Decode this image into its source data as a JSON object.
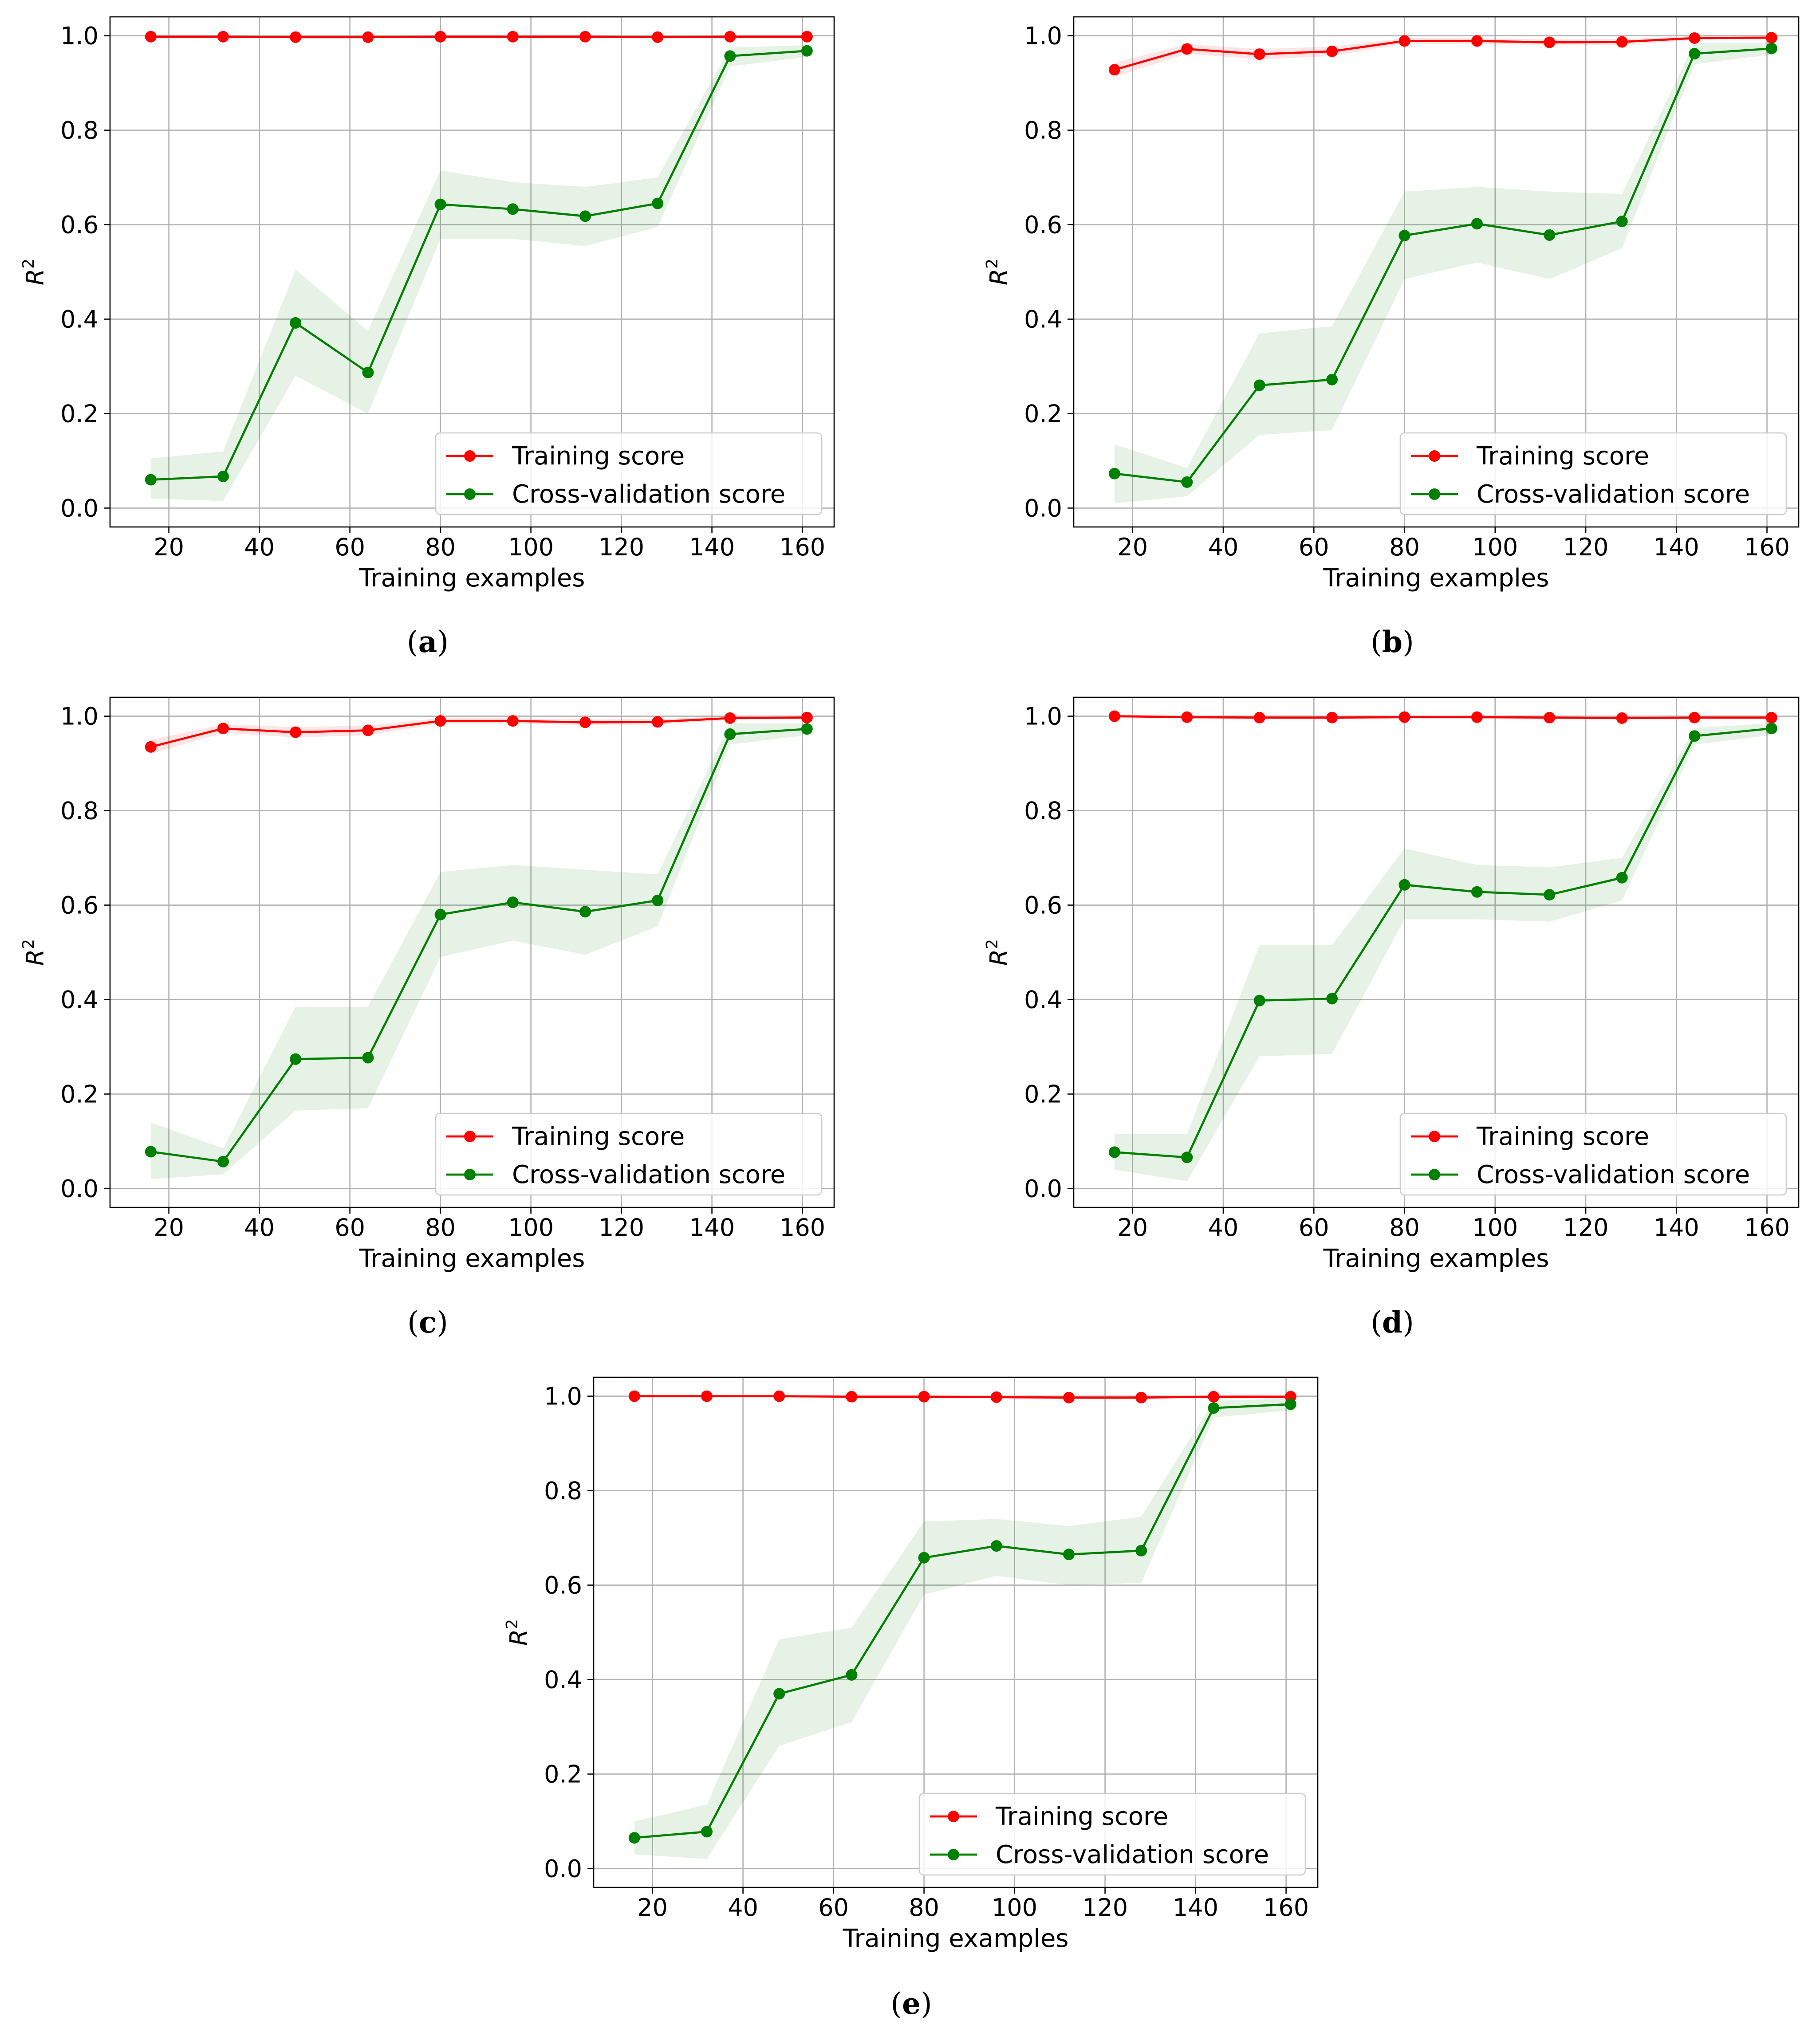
{
  "figure": {
    "xlabel": "Training examples",
    "ylabel_base": "R",
    "ylabel_sup": "2",
    "legend": {
      "training": "Training score",
      "cv": "Cross-validation score",
      "position": "lower-right"
    }
  },
  "colors": {
    "training": "#ff0000",
    "cv": "#008000",
    "training_band": "#ff0000",
    "cv_band": "#008000",
    "grid": "#b0b0b0",
    "axis": "#000000"
  },
  "chart_data": [
    {
      "type": "line",
      "panel": "a",
      "caption": "a",
      "x": [
        16,
        32,
        48,
        64,
        80,
        96,
        112,
        128,
        144,
        161
      ],
      "xlim": [
        7,
        167
      ],
      "xticks": [
        20,
        40,
        60,
        80,
        100,
        120,
        140,
        160
      ],
      "ylim": [
        -0.04,
        1.04
      ],
      "yticks": [
        "0.0",
        "0.2",
        "0.4",
        "0.6",
        "0.8",
        "1.0"
      ],
      "grid": true,
      "series": [
        {
          "name": "Training score",
          "values": [
            0.998,
            0.998,
            0.997,
            0.997,
            0.998,
            0.998,
            0.998,
            0.997,
            0.998,
            0.998
          ],
          "lower": [
            0.995,
            0.995,
            0.994,
            0.994,
            0.995,
            0.995,
            0.995,
            0.994,
            0.995,
            0.995
          ],
          "upper": [
            1.0,
            1.0,
            1.0,
            1.0,
            1.0,
            1.0,
            1.0,
            1.0,
            1.0,
            1.0
          ]
        },
        {
          "name": "Cross-validation score",
          "values": [
            0.06,
            0.067,
            0.392,
            0.287,
            0.643,
            0.633,
            0.618,
            0.645,
            0.957,
            0.968
          ],
          "lower": [
            0.02,
            0.015,
            0.28,
            0.2,
            0.57,
            0.57,
            0.555,
            0.595,
            0.935,
            0.955
          ],
          "upper": [
            0.105,
            0.12,
            0.505,
            0.375,
            0.715,
            0.69,
            0.68,
            0.7,
            0.975,
            0.98
          ]
        }
      ]
    },
    {
      "type": "line",
      "panel": "b",
      "caption": "b",
      "x": [
        16,
        32,
        48,
        64,
        80,
        96,
        112,
        128,
        144,
        161
      ],
      "xlim": [
        7,
        167
      ],
      "xticks": [
        20,
        40,
        60,
        80,
        100,
        120,
        140,
        160
      ],
      "ylim": [
        -0.04,
        1.04
      ],
      "yticks": [
        "0.0",
        "0.2",
        "0.4",
        "0.6",
        "0.8",
        "1.0"
      ],
      "grid": true,
      "series": [
        {
          "name": "Training score",
          "values": [
            0.928,
            0.972,
            0.961,
            0.967,
            0.989,
            0.989,
            0.986,
            0.987,
            0.995,
            0.996
          ],
          "lower": [
            0.913,
            0.962,
            0.95,
            0.957,
            0.983,
            0.983,
            0.98,
            0.981,
            0.991,
            0.993
          ],
          "upper": [
            0.943,
            0.982,
            0.972,
            0.977,
            0.995,
            0.995,
            0.992,
            0.993,
            0.999,
            0.999
          ]
        },
        {
          "name": "Cross-validation score",
          "values": [
            0.073,
            0.055,
            0.26,
            0.272,
            0.577,
            0.602,
            0.578,
            0.607,
            0.962,
            0.973
          ],
          "lower": [
            0.01,
            0.025,
            0.155,
            0.165,
            0.485,
            0.52,
            0.485,
            0.55,
            0.94,
            0.96
          ],
          "upper": [
            0.135,
            0.085,
            0.37,
            0.385,
            0.67,
            0.68,
            0.67,
            0.665,
            0.985,
            0.985
          ]
        }
      ]
    },
    {
      "type": "line",
      "panel": "c",
      "caption": "c",
      "x": [
        16,
        32,
        48,
        64,
        80,
        96,
        112,
        128,
        144,
        161
      ],
      "xlim": [
        7,
        167
      ],
      "xticks": [
        20,
        40,
        60,
        80,
        100,
        120,
        140,
        160
      ],
      "ylim": [
        -0.04,
        1.04
      ],
      "yticks": [
        "0.0",
        "0.2",
        "0.4",
        "0.6",
        "0.8",
        "1.0"
      ],
      "grid": true,
      "series": [
        {
          "name": "Training score",
          "values": [
            0.935,
            0.974,
            0.966,
            0.97,
            0.99,
            0.99,
            0.987,
            0.988,
            0.996,
            0.997
          ],
          "lower": [
            0.92,
            0.965,
            0.955,
            0.96,
            0.984,
            0.984,
            0.981,
            0.982,
            0.992,
            0.994
          ],
          "upper": [
            0.95,
            0.983,
            0.977,
            0.98,
            0.996,
            0.996,
            0.993,
            0.994,
            1.0,
            1.0
          ]
        },
        {
          "name": "Cross-validation score",
          "values": [
            0.078,
            0.057,
            0.274,
            0.277,
            0.58,
            0.606,
            0.586,
            0.61,
            0.962,
            0.973
          ],
          "lower": [
            0.02,
            0.03,
            0.165,
            0.17,
            0.49,
            0.525,
            0.495,
            0.555,
            0.94,
            0.96
          ],
          "upper": [
            0.14,
            0.085,
            0.385,
            0.385,
            0.67,
            0.685,
            0.675,
            0.665,
            0.985,
            0.985
          ]
        }
      ]
    },
    {
      "type": "line",
      "panel": "d",
      "caption": "d",
      "x": [
        16,
        32,
        48,
        64,
        80,
        96,
        112,
        128,
        144,
        161
      ],
      "xlim": [
        7,
        167
      ],
      "xticks": [
        20,
        40,
        60,
        80,
        100,
        120,
        140,
        160
      ],
      "ylim": [
        -0.04,
        1.04
      ],
      "yticks": [
        "0.0",
        "0.2",
        "0.4",
        "0.6",
        "0.8",
        "1.0"
      ],
      "grid": true,
      "series": [
        {
          "name": "Training score",
          "values": [
            1.0,
            0.998,
            0.997,
            0.997,
            0.998,
            0.998,
            0.997,
            0.996,
            0.997,
            0.997
          ],
          "lower": [
            0.997,
            0.995,
            0.994,
            0.994,
            0.995,
            0.995,
            0.994,
            0.993,
            0.994,
            0.994
          ],
          "upper": [
            1.0,
            1.0,
            1.0,
            1.0,
            1.0,
            1.0,
            1.0,
            0.999,
            1.0,
            1.0
          ]
        },
        {
          "name": "Cross-validation score",
          "values": [
            0.077,
            0.066,
            0.398,
            0.402,
            0.643,
            0.628,
            0.622,
            0.658,
            0.958,
            0.974
          ],
          "lower": [
            0.04,
            0.015,
            0.28,
            0.285,
            0.57,
            0.57,
            0.565,
            0.61,
            0.94,
            0.96
          ],
          "upper": [
            0.115,
            0.115,
            0.515,
            0.515,
            0.72,
            0.685,
            0.68,
            0.7,
            0.975,
            0.985
          ]
        }
      ]
    },
    {
      "type": "line",
      "panel": "e",
      "caption": "e",
      "x": [
        16,
        32,
        48,
        64,
        80,
        96,
        112,
        128,
        144,
        161
      ],
      "xlim": [
        7,
        167
      ],
      "xticks": [
        20,
        40,
        60,
        80,
        100,
        120,
        140,
        160
      ],
      "ylim": [
        -0.04,
        1.04
      ],
      "yticks": [
        "0.0",
        "0.2",
        "0.4",
        "0.6",
        "0.8",
        "1.0"
      ],
      "grid": true,
      "series": [
        {
          "name": "Training score",
          "values": [
            1.0,
            1.0,
            1.0,
            0.999,
            0.999,
            0.998,
            0.997,
            0.997,
            0.999,
            0.999
          ],
          "lower": [
            0.997,
            0.997,
            0.997,
            0.996,
            0.996,
            0.995,
            0.994,
            0.994,
            0.996,
            0.996
          ],
          "upper": [
            1.0,
            1.0,
            1.0,
            1.0,
            1.0,
            1.0,
            1.0,
            1.0,
            1.0,
            1.0
          ]
        },
        {
          "name": "Cross-validation score",
          "values": [
            0.065,
            0.078,
            0.37,
            0.41,
            0.658,
            0.683,
            0.665,
            0.673,
            0.975,
            0.983
          ],
          "lower": [
            0.03,
            0.02,
            0.26,
            0.31,
            0.58,
            0.62,
            0.6,
            0.605,
            0.955,
            0.97
          ],
          "upper": [
            0.1,
            0.135,
            0.485,
            0.51,
            0.735,
            0.74,
            0.725,
            0.745,
            0.99,
            0.995
          ]
        }
      ]
    }
  ]
}
